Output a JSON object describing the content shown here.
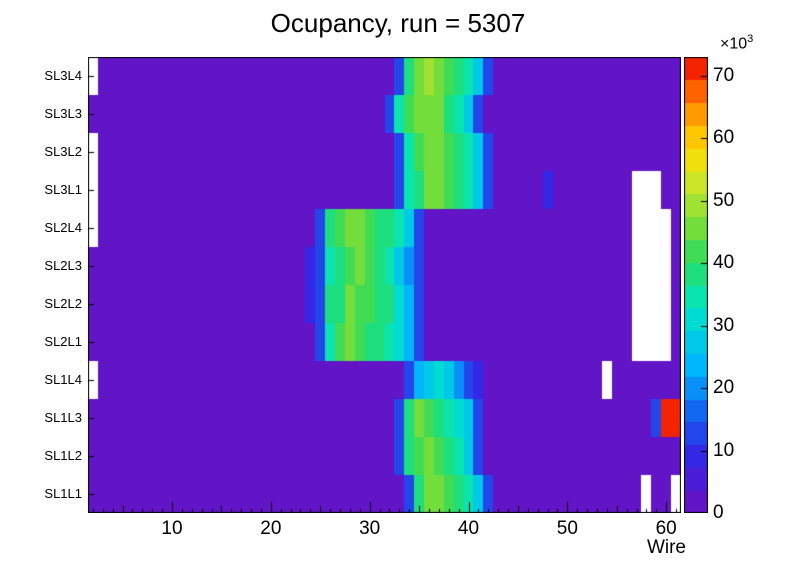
{
  "title": "Ocupancy, run = 5307",
  "chart_data": {
    "type": "heatmap",
    "title": "Ocupancy, run = 5307",
    "xlabel": "Wire",
    "ylabel": "",
    "value_scale": 1000,
    "zmin": 0,
    "zmax": 73,
    "levels": 20,
    "background_value": 3,
    "empty_color": "#ffffff",
    "x_axis": {
      "min": 1.5,
      "max": 61.5,
      "ticks": [
        10,
        20,
        30,
        40,
        50,
        60
      ]
    },
    "colorbar": {
      "min": 0,
      "max": 73,
      "ticks": [
        0,
        10,
        20,
        30,
        40,
        50,
        60,
        70
      ],
      "multiplier": "×10",
      "exponent": "3"
    },
    "palette": [
      [
        0.0,
        "#6e0fc0"
      ],
      [
        0.13,
        "#3228e6"
      ],
      [
        0.22,
        "#1464f0"
      ],
      [
        0.32,
        "#00b4ff"
      ],
      [
        0.45,
        "#00e6c8"
      ],
      [
        0.55,
        "#28dc64"
      ],
      [
        0.62,
        "#6edc3c"
      ],
      [
        0.72,
        "#c8e628"
      ],
      [
        0.8,
        "#ffdc00"
      ],
      [
        0.88,
        "#ff9600"
      ],
      [
        0.95,
        "#ff4600"
      ],
      [
        1.0,
        "#e60000"
      ]
    ],
    "rows": [
      {
        "label": "SL1L1",
        "cells": {
          "34": 14,
          "35": 40,
          "36": 44,
          "37": 46,
          "38": 42,
          "39": 38,
          "40": 34,
          "41": 26,
          "42": 12
        },
        "empty": [
          58,
          61
        ]
      },
      {
        "label": "SL1L2",
        "cells": {
          "33": 12,
          "34": 38,
          "35": 42,
          "36": 44,
          "37": 42,
          "38": 38,
          "39": 34,
          "40": 26,
          "41": 12
        },
        "empty": []
      },
      {
        "label": "SL1L3",
        "cells": {
          "33": 12,
          "34": 40,
          "35": 44,
          "36": 42,
          "37": 40,
          "38": 36,
          "39": 32,
          "40": 26,
          "41": 12,
          "59": 12,
          "60": 72,
          "61": 72
        },
        "empty": []
      },
      {
        "label": "SL1L4",
        "cells": {
          "34": 12,
          "35": 22,
          "36": 26,
          "37": 30,
          "38": 26,
          "39": 20,
          "40": 14,
          "41": 10
        },
        "empty": [
          2,
          54
        ]
      },
      {
        "label": "SL2L1",
        "cells": {
          "25": 12,
          "26": 36,
          "27": 42,
          "28": 44,
          "29": 42,
          "30": 40,
          "31": 38,
          "32": 36,
          "33": 30,
          "34": 24,
          "35": 12
        },
        "empty": [
          57,
          58,
          59,
          60
        ]
      },
      {
        "label": "SL2L2",
        "cells": {
          "24": 9,
          "25": 12,
          "26": 38,
          "27": 40,
          "28": 44,
          "29": 42,
          "30": 42,
          "31": 40,
          "32": 38,
          "33": 30,
          "34": 22,
          "35": 12
        },
        "empty": [
          57,
          58,
          59,
          60
        ]
      },
      {
        "label": "SL2L3",
        "cells": {
          "24": 9,
          "25": 12,
          "26": 36,
          "27": 40,
          "28": 42,
          "29": 44,
          "30": 42,
          "31": 40,
          "32": 36,
          "33": 28,
          "34": 20,
          "35": 12
        },
        "empty": [
          57,
          58,
          59,
          60
        ]
      },
      {
        "label": "SL2L4",
        "cells": {
          "25": 12,
          "26": 38,
          "27": 42,
          "28": 44,
          "29": 44,
          "30": 42,
          "31": 40,
          "32": 38,
          "33": 34,
          "34": 26,
          "35": 14
        },
        "empty": [
          2,
          57,
          58,
          59,
          60
        ]
      },
      {
        "label": "SL3L1",
        "cells": {
          "33": 12,
          "34": 36,
          "35": 40,
          "36": 44,
          "37": 44,
          "38": 42,
          "39": 38,
          "40": 34,
          "41": 26,
          "42": 12,
          "48": 9
        },
        "empty": [
          2,
          57,
          58,
          59
        ]
      },
      {
        "label": "SL3L2",
        "cells": {
          "33": 12,
          "34": 36,
          "35": 42,
          "36": 46,
          "37": 46,
          "38": 42,
          "39": 38,
          "40": 34,
          "41": 28,
          "42": 12
        },
        "empty": [
          2
        ]
      },
      {
        "label": "SL3L3",
        "cells": {
          "32": 12,
          "33": 36,
          "34": 42,
          "35": 46,
          "36": 46,
          "37": 44,
          "38": 40,
          "39": 36,
          "40": 28,
          "41": 12
        },
        "empty": []
      },
      {
        "label": "SL3L4",
        "cells": {
          "33": 12,
          "34": 38,
          "35": 44,
          "36": 48,
          "37": 46,
          "38": 42,
          "39": 38,
          "40": 34,
          "41": 28,
          "42": 12
        },
        "empty": [
          2
        ]
      }
    ]
  }
}
